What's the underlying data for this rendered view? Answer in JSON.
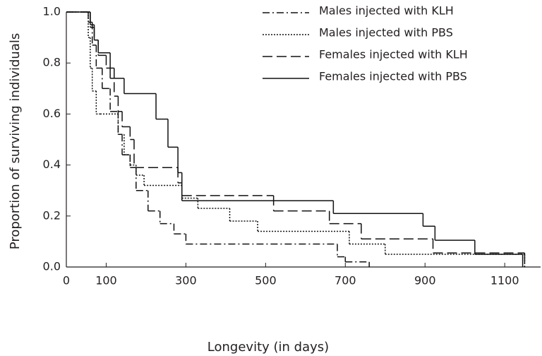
{
  "chart_data": {
    "type": "step",
    "xlabel": "Longevity (in days)",
    "ylabel": "Proportion of surviving individuals",
    "xlim": [
      0,
      1190
    ],
    "ylim": [
      0,
      1
    ],
    "xticks": [
      0,
      100,
      300,
      500,
      700,
      900,
      1100
    ],
    "yticks": [
      {
        "value": 0,
        "label": "0.0"
      },
      0.2,
      0.4,
      0.6,
      0.8,
      {
        "value": 1,
        "label": "1.0"
      }
    ],
    "legend": "upper right",
    "series": [
      {
        "name": "Males injected with KLH",
        "color": "#111111",
        "dash": "10,4,2,4",
        "x": [
          0,
          55,
          65,
          75,
          90,
          110,
          130,
          140,
          160,
          175,
          205,
          235,
          270,
          300,
          680,
          700,
          760
        ],
        "values": [
          1,
          0.96,
          0.87,
          0.78,
          0.7,
          0.61,
          0.52,
          0.44,
          0.39,
          0.3,
          0.22,
          0.17,
          0.13,
          0.09,
          0.04,
          0.02,
          0
        ]
      },
      {
        "name": "Males injected with PBS",
        "color": "#111111",
        "dash": "2,2",
        "x": [
          0,
          55,
          60,
          65,
          75,
          85,
          130,
          145,
          160,
          175,
          195,
          290,
          330,
          410,
          480,
          710,
          800,
          1150
        ],
        "values": [
          1,
          0.9,
          0.78,
          0.69,
          0.6,
          0.6,
          0.52,
          0.44,
          0.4,
          0.36,
          0.32,
          0.27,
          0.23,
          0.18,
          0.14,
          0.09,
          0.05,
          0
        ]
      },
      {
        "name": "Females injected with KLH",
        "color": "#111111",
        "dash": "14,6",
        "x": [
          0,
          60,
          70,
          80,
          100,
          120,
          130,
          140,
          160,
          170,
          280,
          290,
          520,
          660,
          740,
          920,
          1150
        ],
        "values": [
          1,
          0.94,
          0.89,
          0.83,
          0.78,
          0.67,
          0.61,
          0.55,
          0.5,
          0.39,
          0.33,
          0.28,
          0.22,
          0.17,
          0.11,
          0.055,
          0
        ]
      },
      {
        "name": "Females injected with PBS",
        "color": "#111111",
        "dash": "none",
        "x": [
          0,
          60,
          70,
          80,
          110,
          145,
          225,
          255,
          280,
          290,
          670,
          895,
          925,
          1025,
          1145
        ],
        "values": [
          1,
          0.95,
          0.89,
          0.84,
          0.74,
          0.68,
          0.58,
          0.47,
          0.37,
          0.26,
          0.21,
          0.16,
          0.105,
          0.05,
          0
        ]
      }
    ]
  }
}
